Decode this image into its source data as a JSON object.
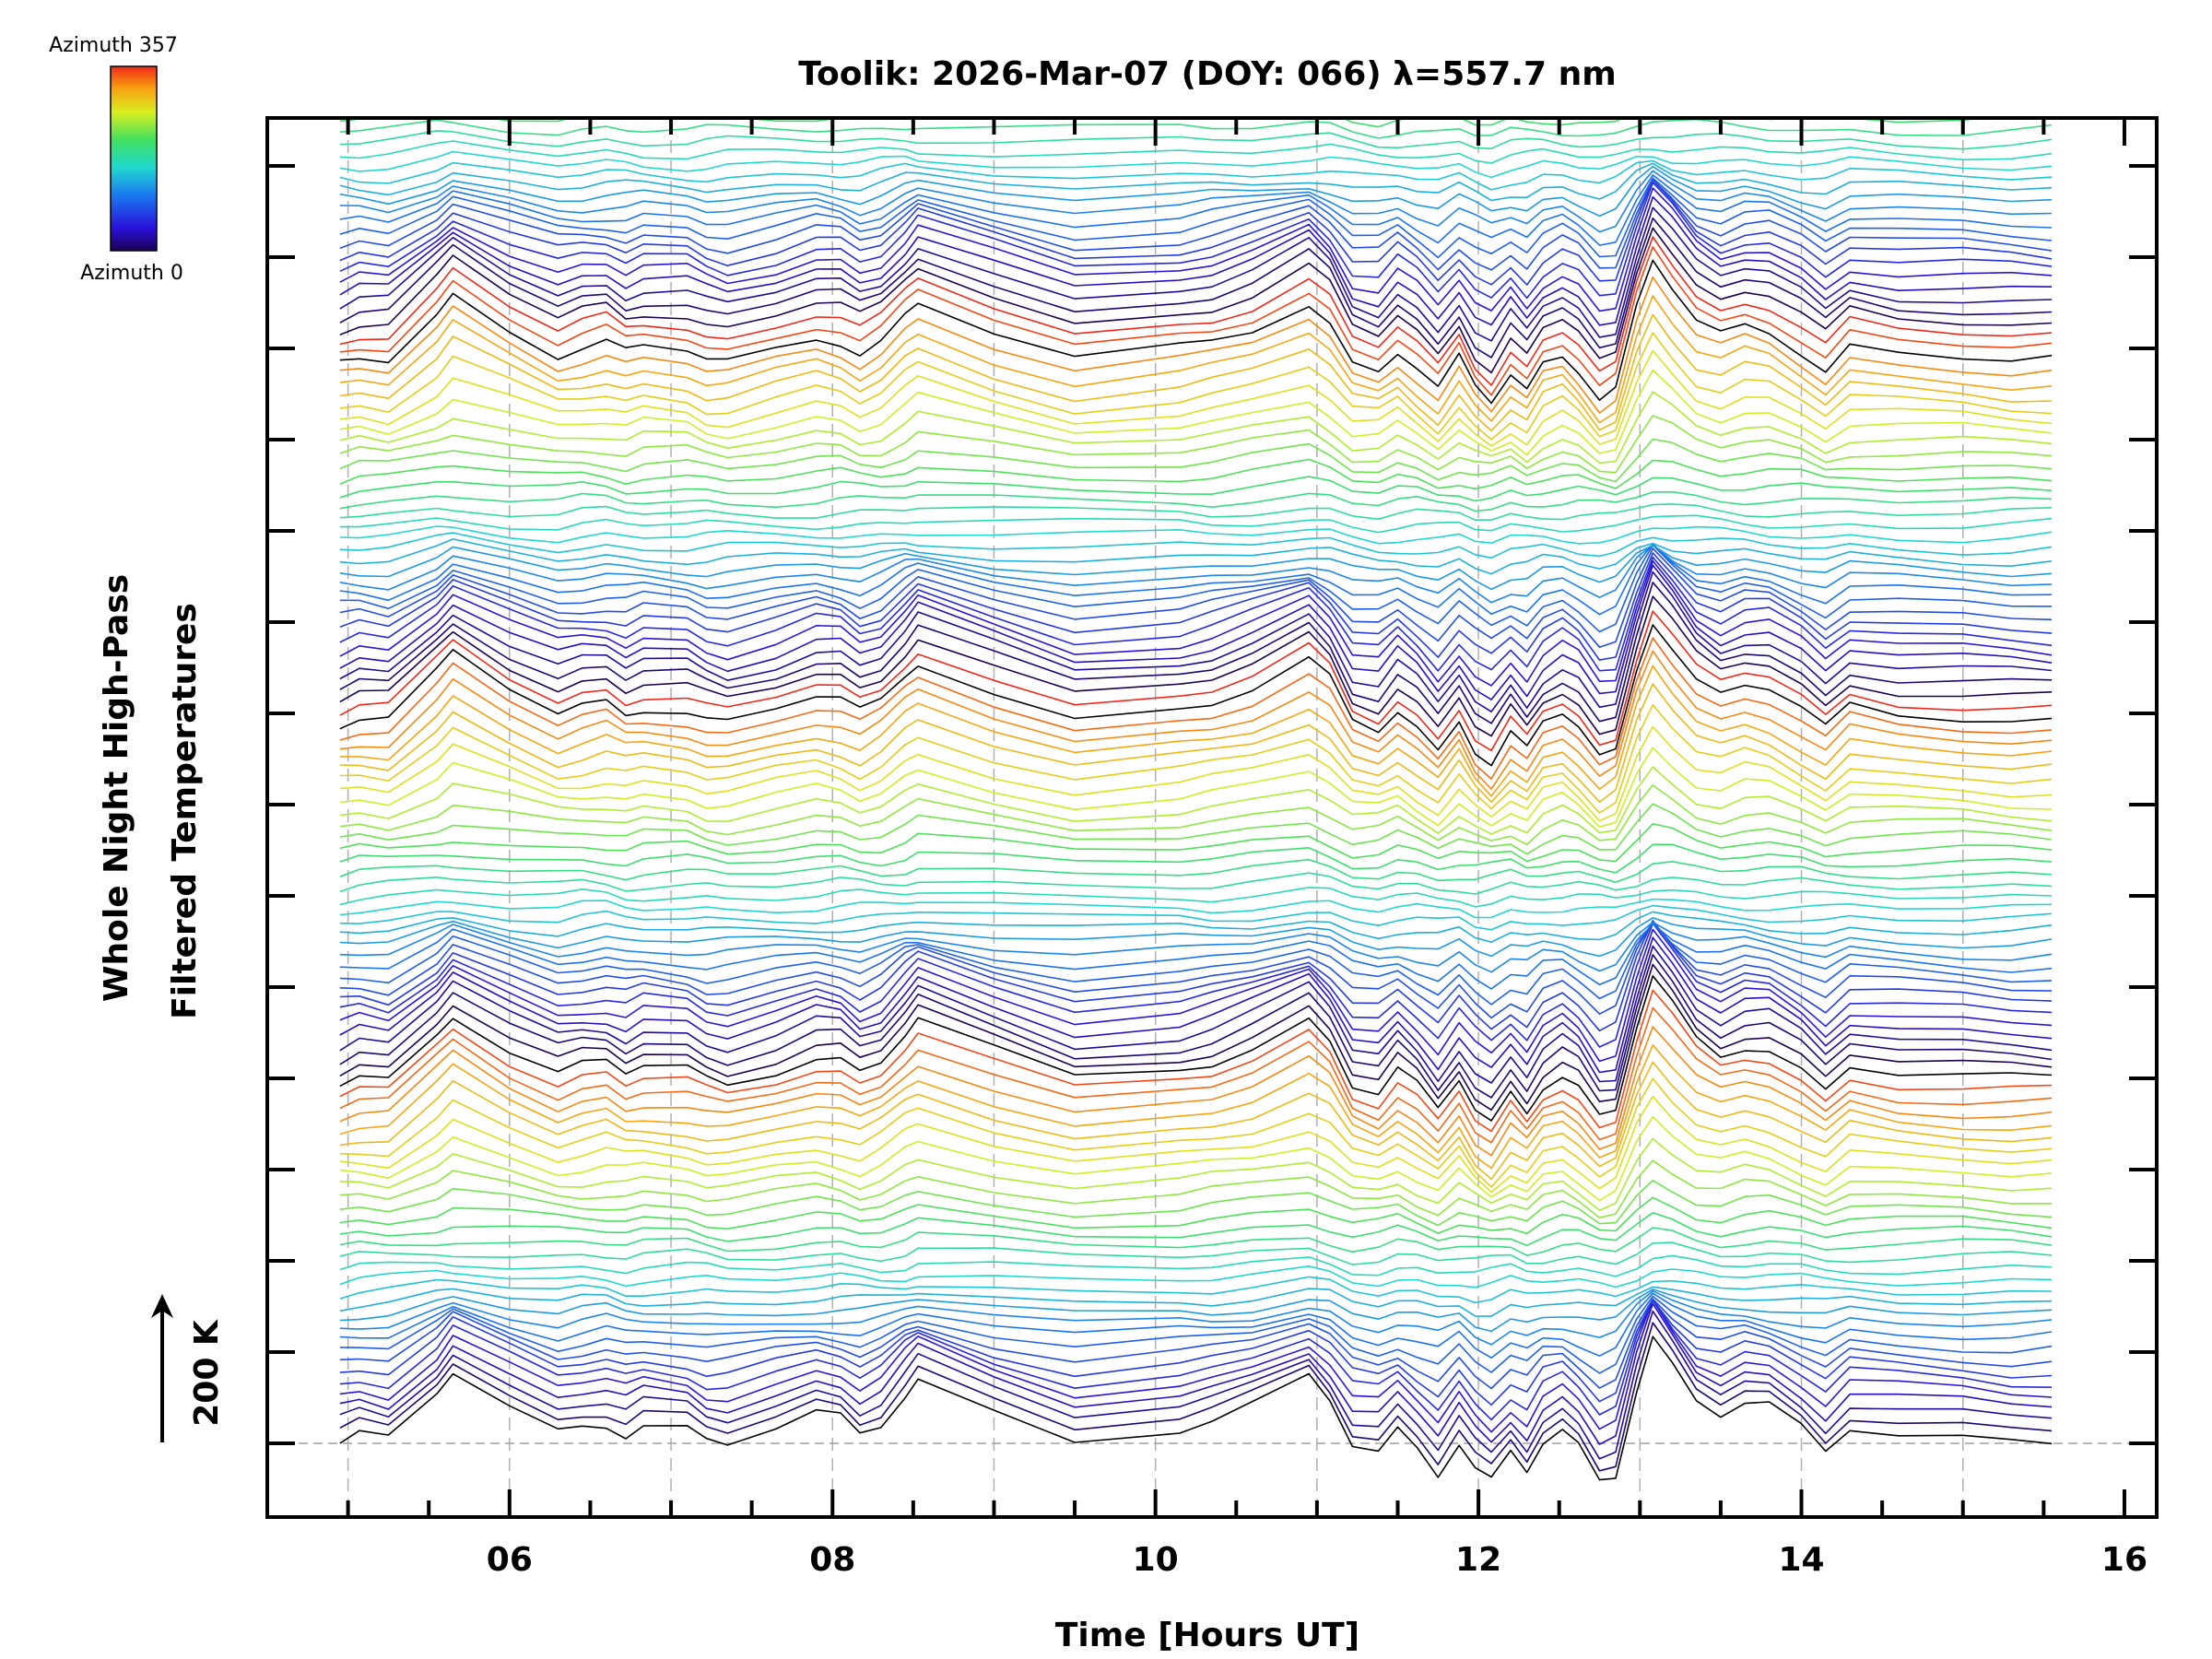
{
  "chart_data": {
    "type": "line",
    "title": "Toolik: 2026-Mar-07 (DOY: 066) λ=557.7 nm",
    "xlabel": "Time [Hours UT]",
    "ylabel_line1": "Whole Night High-Pass",
    "ylabel_line2": "Filtered Temperatures",
    "scale_label": "200 K",
    "colorbar": {
      "top_label": "Azimuth 357",
      "bottom_label": "Azimuth 0",
      "colormap": "rainbow"
    },
    "xlim": [
      4.5,
      16.2
    ],
    "x_ticks": [
      6,
      8,
      10,
      12,
      14,
      16
    ],
    "x_tick_labels": [
      "06",
      "08",
      "10",
      "12",
      "14",
      "16"
    ],
    "y_tick_count": 15,
    "series_count": 130,
    "azimuth_cycle": 32,
    "offset_per_series": 12,
    "times": [
      4.95,
      5.07,
      5.25,
      5.55,
      5.65,
      6.0,
      6.3,
      6.45,
      6.6,
      6.72,
      6.83,
      7.1,
      7.22,
      7.35,
      7.65,
      7.9,
      8.05,
      8.17,
      8.3,
      8.45,
      8.53,
      9.0,
      9.5,
      10.15,
      10.35,
      10.6,
      10.95,
      11.08,
      11.22,
      11.38,
      11.5,
      11.62,
      11.75,
      11.88,
      11.98,
      12.08,
      12.2,
      12.3,
      12.4,
      12.52,
      12.62,
      12.75,
      12.85,
      12.98,
      13.08,
      13.2,
      13.35,
      13.5,
      13.65,
      13.8,
      14.0,
      14.15,
      14.3,
      14.6,
      15.0,
      15.3,
      15.55
    ],
    "base_profile": [
      0,
      10,
      5,
      70,
      100,
      50,
      15,
      25,
      30,
      15,
      25,
      20,
      5,
      0,
      20,
      40,
      35,
      15,
      30,
      70,
      90,
      45,
      5,
      20,
      30,
      50,
      90,
      60,
      0,
      -10,
      20,
      -5,
      -40,
      5,
      -35,
      -55,
      -15,
      -40,
      0,
      15,
      -5,
      -50,
      -40,
      80,
      150,
      110,
      60,
      40,
      55,
      50,
      20,
      -10,
      25,
      15,
      10,
      5,
      5
    ],
    "trace_highlight_indices": [
      0,
      31,
      62,
      93
    ]
  },
  "colors": {
    "background": "#ffffff",
    "axis": "#000000",
    "grid": "#b0b0b0",
    "reference_line": "#a0a0a0"
  }
}
